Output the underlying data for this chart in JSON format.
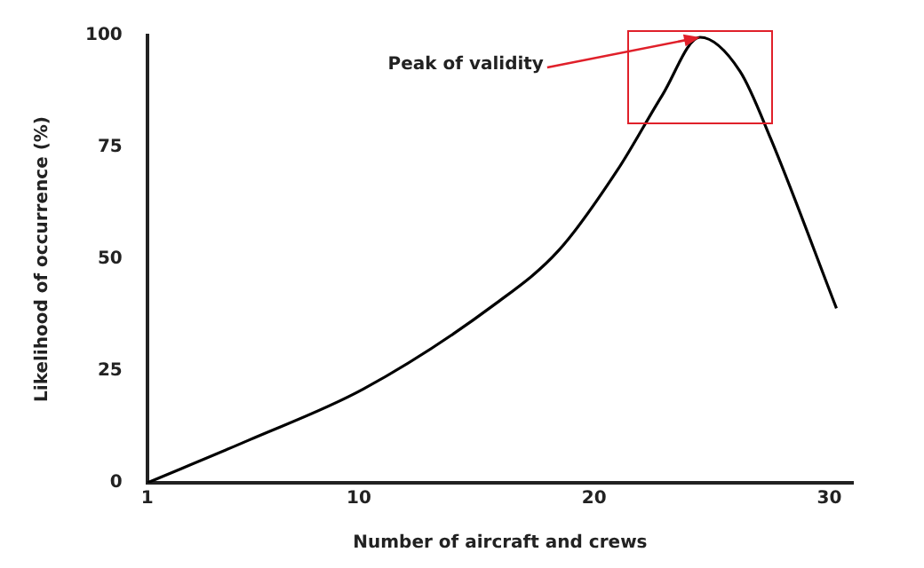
{
  "chart_data": {
    "type": "line",
    "xlabel": "Number of aircraft and crews",
    "ylabel": "Likelihood of occurrence (%)",
    "x": [
      1,
      5.3,
      10.2,
      15.8,
      18.5,
      21.0,
      22.9,
      24.5,
      26.2,
      27.5,
      30.3
    ],
    "series": [
      {
        "color": "#000000",
        "values": [
          0,
          9.5,
          21,
          40,
          52,
          70,
          86.7,
          99.6,
          92,
          77,
          39
        ]
      }
    ],
    "xlim": [
      1,
      31
    ],
    "xticks": [
      1,
      10,
      20,
      30
    ],
    "ylim": [
      0,
      100
    ],
    "yticks": [
      0,
      25,
      50,
      75,
      100
    ],
    "grid": false,
    "legend": false,
    "marker": "none",
    "line_style": "solid",
    "annotations": [
      {
        "text": "Peak of validity",
        "x": 24.5,
        "y": 99.6
      }
    ]
  }
}
